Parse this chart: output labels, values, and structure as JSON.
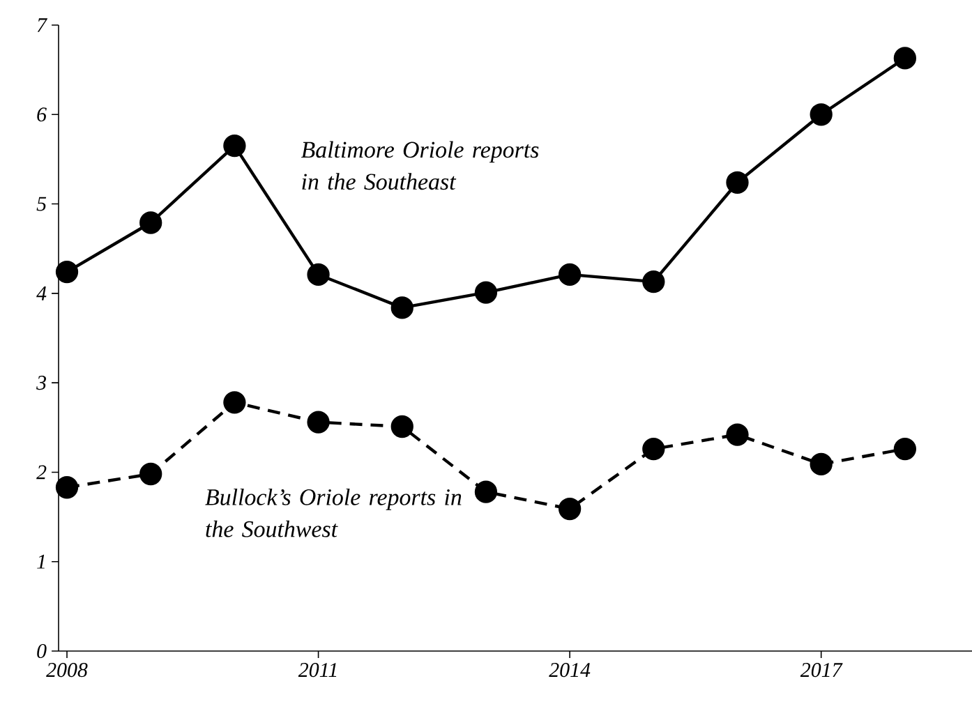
{
  "chart_data": {
    "type": "line",
    "x": [
      2008,
      2009,
      2010,
      2011,
      2012,
      2013,
      2014,
      2015,
      2016,
      2017,
      2018
    ],
    "series": [
      {
        "name": "Baltimore Oriole reports in the Southeast",
        "color": "#000000",
        "line_style": "solid",
        "values": [
          4.24,
          4.79,
          5.65,
          4.21,
          3.84,
          4.01,
          4.21,
          4.13,
          5.24,
          6.0,
          6.63
        ]
      },
      {
        "name": "Bullock’s Oriole reports in the Southwest",
        "color": "#000000",
        "line_style": "dashed",
        "values": [
          1.83,
          1.98,
          2.78,
          2.56,
          2.51,
          1.78,
          1.59,
          2.26,
          2.42,
          2.09,
          2.26
        ]
      }
    ],
    "marker": "circle",
    "xlim": [
      2007.9,
      2018.8
    ],
    "xticks": [
      2008,
      2011,
      2014,
      2017
    ],
    "ylim": [
      0,
      7
    ],
    "yticks": [
      0,
      1,
      2,
      3,
      4,
      5,
      6,
      7
    ],
    "grid": false,
    "legend": false
  }
}
